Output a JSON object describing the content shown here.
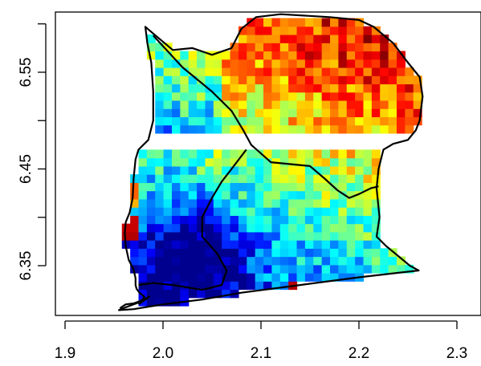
{
  "chart_data": {
    "type": "heatmap",
    "title": "",
    "xlabel": "",
    "ylabel": "",
    "xlim": [
      1.89,
      2.3
    ],
    "ylim": [
      6.3,
      6.61
    ],
    "x_ticks": [
      "1.9",
      "2.0",
      "2.1",
      "2.2",
      "2.3"
    ],
    "y_ticks": [
      "6.35",
      "6.45",
      "6.55"
    ],
    "x_tick_values": [
      1.9,
      2.0,
      2.1,
      2.2,
      2.3
    ],
    "y_tick_values": [
      6.35,
      6.4,
      6.45,
      6.5,
      6.55,
      6.6
    ],
    "y_tick_labelled": [
      true,
      false,
      true,
      false,
      true,
      false
    ],
    "grid": false,
    "legend": "none",
    "colormap": "jet",
    "value_range": [
      0,
      1
    ],
    "cell_size": 0.0085,
    "missing_row_band": [
      6.476,
      6.482
    ],
    "colors": {
      "jet": [
        "#00008f",
        "#0000ff",
        "#0080ff",
        "#00ffff",
        "#80ff80",
        "#ffff00",
        "#ff8000",
        "#ff0000",
        "#800000"
      ],
      "boundary": "#000000",
      "axis": "#000000"
    },
    "hot_cells": [
      {
        "x": 1.966,
        "y": 6.385,
        "value": 0.95
      },
      {
        "x": 1.966,
        "y": 6.393,
        "value": 0.93
      },
      {
        "x": 1.966,
        "y": 6.427,
        "value": 0.78
      },
      {
        "x": 1.966,
        "y": 6.418,
        "value": 0.7
      },
      {
        "x": 1.974,
        "y": 6.461,
        "value": 0.7
      },
      {
        "x": 2.136,
        "y": 6.329,
        "value": 0.95
      },
      {
        "x": 2.136,
        "y": 6.6,
        "value": 0.76
      }
    ],
    "study_outline": [
      [
        1.981,
        6.318
      ],
      [
        1.976,
        6.322
      ],
      [
        1.973,
        6.326
      ],
      [
        1.972,
        6.33
      ],
      [
        1.972,
        6.337
      ],
      [
        1.97,
        6.346
      ],
      [
        1.965,
        6.356
      ],
      [
        1.962,
        6.37
      ],
      [
        1.961,
        6.384
      ],
      [
        1.962,
        6.395
      ],
      [
        1.966,
        6.405
      ],
      [
        1.969,
        6.42
      ],
      [
        1.97,
        6.44
      ],
      [
        1.972,
        6.46
      ],
      [
        1.975,
        6.47
      ],
      [
        1.985,
        6.48
      ],
      [
        1.99,
        6.5
      ],
      [
        1.99,
        6.53
      ],
      [
        1.988,
        6.56
      ],
      [
        1.984,
        6.58
      ],
      [
        1.982,
        6.597
      ],
      [
        1.99,
        6.59
      ],
      [
        2.01,
        6.573
      ],
      [
        2.03,
        6.575
      ],
      [
        2.05,
        6.568
      ],
      [
        2.07,
        6.575
      ],
      [
        2.08,
        6.595
      ],
      [
        2.095,
        6.607
      ],
      [
        2.12,
        6.61
      ],
      [
        2.17,
        6.607
      ],
      [
        2.2,
        6.604
      ],
      [
        2.215,
        6.597
      ],
      [
        2.235,
        6.58
      ],
      [
        2.25,
        6.56
      ],
      [
        2.262,
        6.545
      ],
      [
        2.265,
        6.525
      ],
      [
        2.262,
        6.5
      ],
      [
        2.258,
        6.49
      ],
      [
        2.25,
        6.48
      ],
      [
        2.235,
        6.476
      ],
      [
        2.225,
        6.47
      ],
      [
        2.22,
        6.45
      ],
      [
        2.218,
        6.43
      ],
      [
        2.221,
        6.4
      ],
      [
        2.218,
        6.38
      ],
      [
        2.228,
        6.37
      ],
      [
        2.24,
        6.36
      ],
      [
        2.252,
        6.35
      ],
      [
        2.261,
        6.345
      ],
      [
        2.2,
        6.338
      ],
      [
        2.14,
        6.33
      ],
      [
        2.08,
        6.322
      ],
      [
        2.04,
        6.315
      ],
      [
        2.0,
        6.31
      ],
      [
        1.97,
        6.305
      ],
      [
        1.955,
        6.304
      ],
      [
        1.962,
        6.307
      ],
      [
        1.978,
        6.313
      ],
      [
        1.981,
        6.318
      ]
    ],
    "region_boundaries": [
      [
        [
          1.99,
          6.588
        ],
        [
          2.02,
          6.555
        ],
        [
          2.05,
          6.53
        ],
        [
          2.07,
          6.51
        ],
        [
          2.082,
          6.49
        ],
        [
          2.09,
          6.475
        ],
        [
          2.1,
          6.466
        ],
        [
          2.11,
          6.457
        ],
        [
          2.13,
          6.455
        ],
        [
          2.15,
          6.453
        ],
        [
          2.165,
          6.44
        ],
        [
          2.178,
          6.428
        ],
        [
          2.19,
          6.42
        ],
        [
          2.2,
          6.424
        ],
        [
          2.212,
          6.43
        ],
        [
          2.22,
          6.432
        ]
      ],
      [
        [
          2.085,
          6.47
        ],
        [
          2.07,
          6.45
        ],
        [
          2.06,
          6.437
        ],
        [
          2.05,
          6.42
        ],
        [
          2.04,
          6.4
        ],
        [
          2.04,
          6.38
        ],
        [
          2.055,
          6.363
        ],
        [
          2.065,
          6.345
        ],
        [
          2.06,
          6.33
        ],
        [
          2.04,
          6.325
        ],
        [
          2.01,
          6.33
        ],
        [
          1.99,
          6.332
        ],
        [
          1.975,
          6.33
        ]
      ],
      [
        [
          1.975,
          6.31
        ],
        [
          1.982,
          6.315
        ],
        [
          1.986,
          6.318
        ],
        [
          1.978,
          6.314
        ],
        [
          1.97,
          6.311
        ],
        [
          1.962,
          6.31
        ],
        [
          1.956,
          6.306
        ]
      ]
    ]
  }
}
